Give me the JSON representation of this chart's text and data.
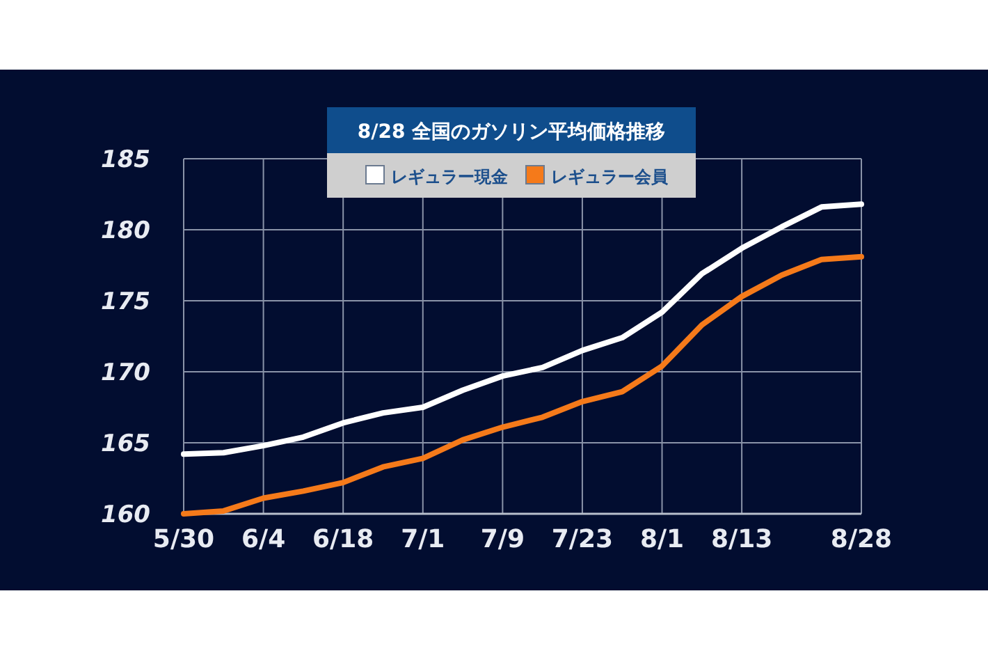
{
  "chart_data": {
    "type": "line",
    "title": "8/28  全国のガソリン平均価格推移",
    "categories": [
      "5/30",
      null,
      "6/4",
      null,
      "6/18",
      null,
      "7/1",
      null,
      "7/9",
      null,
      "7/23",
      null,
      "8/1",
      null,
      "8/13",
      null,
      null,
      "8/28"
    ],
    "series": [
      {
        "name": "レギュラー現金",
        "color": "#ffffff",
        "values": [
          164.2,
          164.3,
          164.8,
          165.4,
          166.4,
          167.1,
          167.5,
          168.7,
          169.7,
          170.3,
          171.5,
          172.4,
          174.2,
          176.9,
          178.7,
          180.2,
          181.6,
          181.8
        ]
      },
      {
        "name": "レギュラー会員",
        "color": "#f57a1a",
        "values": [
          160.0,
          160.2,
          161.1,
          161.6,
          162.2,
          163.3,
          163.9,
          165.2,
          166.1,
          166.8,
          167.9,
          168.6,
          170.4,
          173.3,
          175.3,
          176.8,
          177.9,
          178.1
        ]
      }
    ],
    "ylim": [
      160,
      185
    ],
    "yticks": [
      160,
      165,
      170,
      175,
      180,
      185
    ],
    "grid": true,
    "legend": "top",
    "marker": "none",
    "line_style": "solid"
  }
}
